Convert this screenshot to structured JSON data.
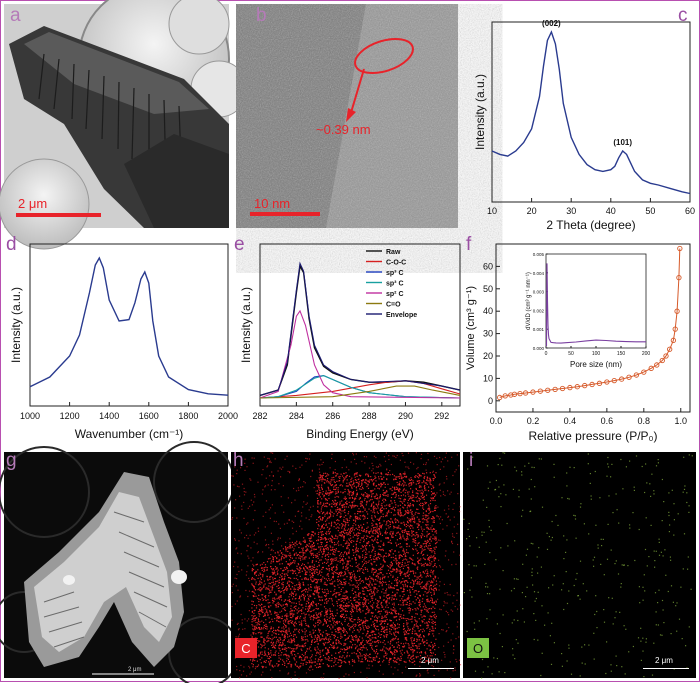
{
  "figure": {
    "a": {
      "label": "a",
      "scale": "2 μm"
    },
    "b": {
      "label": "b",
      "scale": "10 nm",
      "annotation": "~0.39 nm"
    },
    "c": {
      "label": "c",
      "xlabel": "2 Theta (degree)",
      "ylabel": "Intensity (a.u.)",
      "peaks": [
        "(002)",
        "(101)"
      ]
    },
    "d": {
      "label": "d",
      "xlabel": "Wavenumber (cm⁻¹)",
      "ylabel": "Intensity (a.u.)"
    },
    "e": {
      "label": "e",
      "xlabel": "Binding Energy (eV)",
      "ylabel": "Intensity (a.u.)"
    },
    "f": {
      "label": "f",
      "xlabel": "Relative pressure (P/P₀)",
      "ylabel": "Volume (cm³ g⁻¹)",
      "inset_xlabel": "Pore size (nm)",
      "inset_ylabel": "dV/dD (cm³ g⁻¹ nm⁻¹)"
    },
    "g": {
      "label": "g",
      "scale": "2 μm"
    },
    "h": {
      "label": "h",
      "element": "C",
      "scale": "2 μm"
    },
    "i": {
      "label": "i",
      "element": "O",
      "scale": "2 μm"
    }
  },
  "chart_data": [
    {
      "type": "line",
      "panel": "c",
      "xlabel": "2 Theta (degree)",
      "ylabel": "Intensity (a.u.)",
      "xlim": [
        10,
        60
      ],
      "xticks": [
        10,
        20,
        30,
        40,
        50,
        60
      ],
      "x": [
        10,
        12,
        14,
        16,
        18,
        20,
        22,
        23,
        24,
        25,
        26,
        27,
        28,
        30,
        32,
        34,
        36,
        38,
        40,
        41,
        42,
        43,
        44,
        45,
        46,
        48,
        50,
        52,
        55,
        58,
        60
      ],
      "y": [
        0.3,
        0.28,
        0.27,
        0.3,
        0.35,
        0.43,
        0.62,
        0.8,
        0.95,
        1.0,
        0.93,
        0.78,
        0.58,
        0.38,
        0.28,
        0.22,
        0.19,
        0.18,
        0.19,
        0.21,
        0.26,
        0.3,
        0.28,
        0.23,
        0.18,
        0.13,
        0.11,
        0.1,
        0.08,
        0.06,
        0.05
      ],
      "annotations": [
        "(002)",
        "(101)"
      ]
    },
    {
      "type": "line",
      "panel": "d",
      "xlabel": "Wavenumber (cm⁻¹)",
      "ylabel": "Intensity (a.u.)",
      "xlim": [
        1000,
        2000
      ],
      "xticks": [
        1000,
        1200,
        1400,
        1600,
        1800,
        2000
      ],
      "x": [
        1000,
        1100,
        1200,
        1250,
        1300,
        1330,
        1350,
        1370,
        1400,
        1450,
        1500,
        1530,
        1560,
        1580,
        1600,
        1620,
        1650,
        1700,
        1800,
        1900,
        2000
      ],
      "y": [
        0.08,
        0.15,
        0.3,
        0.45,
        0.75,
        0.95,
        1.0,
        0.93,
        0.7,
        0.55,
        0.56,
        0.68,
        0.85,
        0.9,
        0.82,
        0.55,
        0.3,
        0.15,
        0.06,
        0.03,
        0.02
      ]
    },
    {
      "type": "line",
      "panel": "e",
      "xlabel": "Binding Energy (eV)",
      "ylabel": "Intensity (a.u.)",
      "xlim": [
        282,
        293
      ],
      "xticks": [
        282,
        284,
        286,
        288,
        290,
        292
      ],
      "series": [
        {
          "name": "Raw",
          "color": "#111111",
          "x": [
            282,
            283,
            283.5,
            284,
            284.2,
            284.4,
            284.7,
            285,
            285.5,
            286,
            287,
            288,
            289,
            290,
            291,
            292,
            293
          ],
          "y": [
            0.02,
            0.06,
            0.25,
            0.8,
            1.0,
            0.95,
            0.6,
            0.38,
            0.24,
            0.19,
            0.14,
            0.12,
            0.12,
            0.13,
            0.12,
            0.09,
            0.06
          ]
        },
        {
          "name": "C-O-C",
          "color": "#d62020",
          "x": [
            282,
            284,
            286,
            288,
            289,
            290,
            291,
            292,
            293
          ],
          "y": [
            0.0,
            0.02,
            0.05,
            0.1,
            0.12,
            0.13,
            0.11,
            0.07,
            0.03
          ]
        },
        {
          "name": "sp³ C",
          "color": "#2040c0",
          "x": [
            282,
            283,
            284,
            284.5,
            285,
            285.5,
            286,
            287,
            288,
            290,
            293
          ],
          "y": [
            0.0,
            0.01,
            0.05,
            0.11,
            0.16,
            0.17,
            0.14,
            0.08,
            0.04,
            0.01,
            0.0
          ]
        },
        {
          "name": "sp³ C",
          "color": "#18a0a0",
          "x": [
            282,
            283,
            284,
            285,
            285.5,
            286,
            287,
            288,
            290,
            293
          ],
          "y": [
            0.0,
            0.01,
            0.06,
            0.15,
            0.17,
            0.14,
            0.08,
            0.04,
            0.01,
            0.0
          ]
        },
        {
          "name": "sp² C",
          "color": "#c030a0",
          "x": [
            282,
            283,
            283.7,
            284,
            284.2,
            284.5,
            285,
            285.5,
            286,
            287,
            293
          ],
          "y": [
            0.0,
            0.05,
            0.4,
            0.62,
            0.66,
            0.55,
            0.25,
            0.1,
            0.04,
            0.01,
            0.0
          ]
        },
        {
          "name": "C=O",
          "color": "#8c7a10",
          "x": [
            282,
            286,
            288,
            289.5,
            290.5,
            291.5,
            293
          ],
          "y": [
            0.0,
            0.01,
            0.05,
            0.09,
            0.09,
            0.06,
            0.02
          ]
        },
        {
          "name": "Envelope",
          "color": "#1a1a70",
          "x": [
            282,
            283,
            283.5,
            284,
            284.2,
            284.4,
            284.7,
            285,
            285.5,
            286,
            287,
            288,
            290,
            292,
            293
          ],
          "y": [
            0.02,
            0.06,
            0.27,
            0.82,
            1.02,
            0.96,
            0.62,
            0.4,
            0.25,
            0.2,
            0.14,
            0.12,
            0.13,
            0.09,
            0.06
          ]
        }
      ]
    },
    {
      "type": "scatter",
      "panel": "f",
      "xlabel": "Relative pressure (P/P₀)",
      "ylabel": "Volume (cm³ g⁻¹)",
      "xlim": [
        0,
        1.05
      ],
      "ylim": [
        -5,
        70
      ],
      "xticks": [
        0.0,
        0.2,
        0.4,
        0.6,
        0.8,
        1.0
      ],
      "yticks": [
        0,
        10,
        20,
        30,
        40,
        50,
        60
      ],
      "x": [
        0.02,
        0.05,
        0.08,
        0.1,
        0.13,
        0.16,
        0.2,
        0.24,
        0.28,
        0.32,
        0.36,
        0.4,
        0.44,
        0.48,
        0.52,
        0.56,
        0.6,
        0.64,
        0.68,
        0.72,
        0.76,
        0.8,
        0.84,
        0.87,
        0.9,
        0.92,
        0.94,
        0.96,
        0.97,
        0.98,
        0.99,
        0.995
      ],
      "y": [
        1.5,
        2.2,
        2.6,
        2.9,
        3.2,
        3.5,
        3.9,
        4.3,
        4.7,
        5.1,
        5.5,
        5.9,
        6.3,
        6.8,
        7.3,
        7.8,
        8.4,
        9.0,
        9.7,
        10.5,
        11.5,
        12.8,
        14.5,
        16,
        18,
        20,
        23,
        27,
        32,
        40,
        55,
        68
      ],
      "inset": {
        "xlabel": "Pore size (nm)",
        "ylabel": "dV/dD (cm³ g⁻¹ nm⁻¹)",
        "xlim": [
          0,
          200
        ],
        "ylim": [
          0,
          0.005
        ],
        "xticks": [
          0,
          50,
          100,
          150,
          200
        ],
        "yticks": [
          0.0,
          0.001,
          0.002,
          0.003,
          0.004,
          0.005
        ],
        "x": [
          1,
          2,
          3,
          4,
          5,
          6,
          8,
          10,
          15,
          20,
          30,
          40,
          60,
          80,
          100,
          120,
          140,
          160,
          180,
          200
        ],
        "y": [
          0.0001,
          0.0045,
          0.0025,
          0.0012,
          0.0007,
          0.0005,
          0.0004,
          0.0003,
          0.00028,
          0.00027,
          0.00026,
          0.00028,
          0.00032,
          0.00038,
          0.00042,
          0.0004,
          0.00036,
          0.00034,
          0.00033,
          0.00033
        ]
      }
    }
  ],
  "colors": {
    "frame": "#b84fb0",
    "label": "#9a4fa3",
    "red": "#e8232a",
    "navy": "#2a3b8f",
    "orange": "#d65a2a"
  }
}
